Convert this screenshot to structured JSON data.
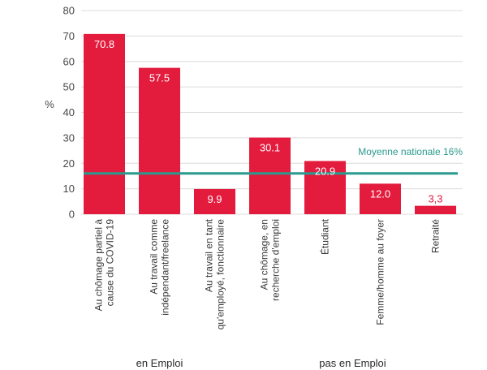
{
  "chart_data": {
    "type": "bar",
    "ylabel": "%",
    "ylim": [
      0,
      80
    ],
    "yticks": [
      0,
      10,
      20,
      30,
      40,
      50,
      60,
      70,
      80
    ],
    "grid": true,
    "categories": [
      [
        "Au chômage partiel à",
        "cause du COVID-19"
      ],
      [
        "Au travail comme",
        "indépendant/freelance"
      ],
      [
        "Au travail en tant",
        "qu'employé, fonctionnaire"
      ],
      [
        "Au chômage, en",
        "recherche d'emploi"
      ],
      [
        "Étudiant"
      ],
      [
        "Femme/homme au foyer"
      ],
      [
        "Retraité"
      ]
    ],
    "values": [
      70.8,
      57.5,
      9.9,
      30.1,
      20.9,
      12.0,
      3.3
    ],
    "value_labels": [
      "70.8",
      "57.5",
      "9.9",
      "30.1",
      "20.9",
      "12.0",
      "3,3"
    ],
    "bar_color": "#e31b3d",
    "reference_line": {
      "value": 16,
      "label": "Moyenne nationale 16%",
      "color": "#2a9a8e"
    },
    "groups": [
      {
        "label": "en Emploi",
        "start": 0,
        "end": 2
      },
      {
        "label": "pas en Emploi",
        "start": 3,
        "end": 6
      }
    ]
  }
}
